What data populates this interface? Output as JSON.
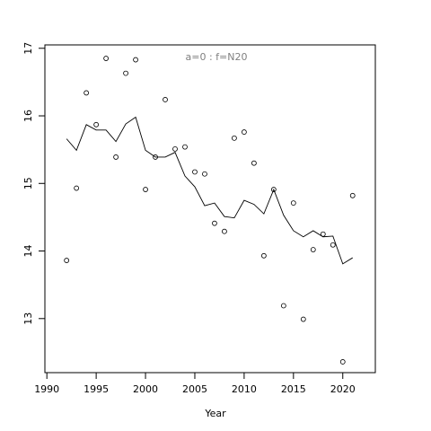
{
  "chart_data": {
    "type": "scatter",
    "annotation": "a=0  :  f=N20",
    "x_label": "Year",
    "x": [
      1992,
      1993,
      1994,
      1995,
      1996,
      1997,
      1998,
      1999,
      2000,
      2001,
      2002,
      2003,
      2004,
      2005,
      2006,
      2007,
      2008,
      2009,
      2010,
      2011,
      2012,
      2013,
      2014,
      2015,
      2016,
      2017,
      2018,
      2019,
      2020,
      2021
    ],
    "series": [
      {
        "style": "points",
        "color": "#000000",
        "values": [
          13.86,
          14.93,
          16.34,
          15.87,
          16.85,
          15.39,
          16.63,
          16.83,
          14.91,
          15.39,
          16.24,
          15.51,
          15.54,
          15.17,
          15.14,
          14.41,
          14.29,
          15.67,
          15.76,
          15.3,
          13.93,
          14.91,
          13.19,
          14.71,
          12.99,
          14.02,
          14.25,
          14.09,
          12.36,
          14.82
        ]
      },
      {
        "style": "line",
        "color": "#000000",
        "values": [
          15.66,
          15.49,
          15.87,
          15.79,
          15.79,
          15.62,
          15.88,
          15.98,
          15.49,
          15.39,
          15.39,
          15.46,
          15.11,
          14.95,
          14.67,
          14.71,
          14.51,
          14.49,
          14.75,
          14.69,
          14.55,
          14.91,
          14.53,
          14.3,
          14.21,
          14.3,
          14.21,
          14.22,
          13.81,
          13.9
        ]
      }
    ],
    "xlim": [
      1989.8,
      2023.3
    ],
    "ylim": [
      12.2,
      17.05
    ],
    "xticks": [
      1990,
      1995,
      2000,
      2005,
      2010,
      2015,
      2020
    ],
    "yticks": [
      13,
      14,
      15,
      16,
      17
    ]
  }
}
